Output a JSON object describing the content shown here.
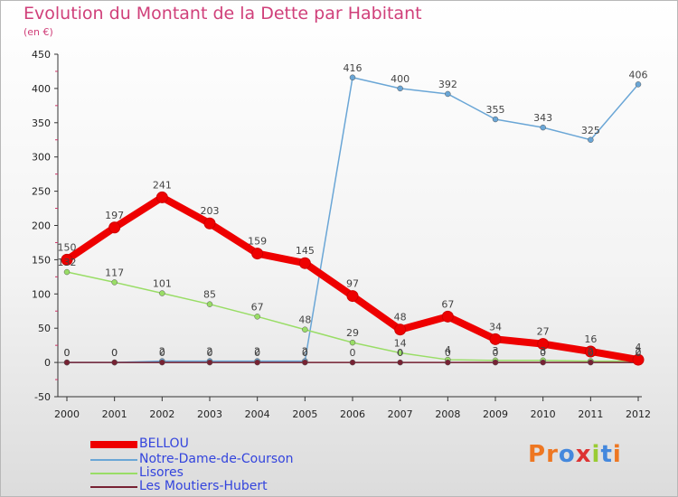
{
  "chart_data": {
    "type": "line",
    "title": "Evolution du Montant de la Dette par Habitant",
    "subtitle": "(en €)",
    "x": [
      "2000",
      "2001",
      "2002",
      "2003",
      "2004",
      "2005",
      "2006",
      "2007",
      "2008",
      "2009",
      "2010",
      "2011",
      "2012"
    ],
    "ylim": [
      -50,
      450
    ],
    "yticks": [
      -50,
      0,
      50,
      100,
      150,
      200,
      250,
      300,
      350,
      400,
      450
    ],
    "grid": false,
    "legend_position": "bottom-left",
    "series": [
      {
        "name": "BELLOU",
        "color": "#ee0000",
        "line_width": 8,
        "values": [
          150,
          197,
          241,
          203,
          159,
          145,
          97,
          48,
          67,
          34,
          27,
          16,
          4
        ],
        "labels": [
          "150",
          "197",
          "241",
          "203",
          "159",
          "145",
          "97",
          "48",
          "67",
          "34",
          "27",
          "16",
          "4"
        ]
      },
      {
        "name": "Notre-Dame-de-Courson",
        "color": "#6aa6d6",
        "line_width": 1.5,
        "values": [
          0,
          0,
          2,
          2,
          2,
          2,
          416,
          400,
          392,
          355,
          343,
          325,
          406
        ],
        "labels": [
          "0",
          "0",
          "2",
          "2",
          "2",
          "2",
          "416",
          "400",
          "392",
          "355",
          "343",
          "325",
          "406"
        ]
      },
      {
        "name": "Lisores",
        "color": "#99dd66",
        "line_width": 1.5,
        "values": [
          132,
          117,
          101,
          85,
          67,
          48,
          29,
          14,
          4,
          3,
          3,
          2,
          2
        ],
        "labels": [
          "132",
          "117",
          "101",
          "85",
          "67",
          "48",
          "29",
          "14",
          "4",
          "3",
          "3",
          "2",
          "2"
        ]
      },
      {
        "name": "Les Moutiers-Hubert",
        "color": "#772233",
        "line_width": 1.5,
        "values": [
          0,
          0,
          0,
          0,
          0,
          0,
          0,
          0,
          0,
          0,
          0,
          0,
          0
        ],
        "labels": [
          "0",
          "0",
          "0",
          "0",
          "0",
          "0",
          "0",
          "0",
          "0",
          "0",
          "0",
          "0",
          "0"
        ]
      }
    ]
  },
  "brand": {
    "text": "Proxiti",
    "colors": [
      "#ee7722",
      "#ee7722",
      "#4488dd",
      "#dd3333",
      "#99cc33",
      "#4488dd",
      "#ee7722"
    ]
  }
}
